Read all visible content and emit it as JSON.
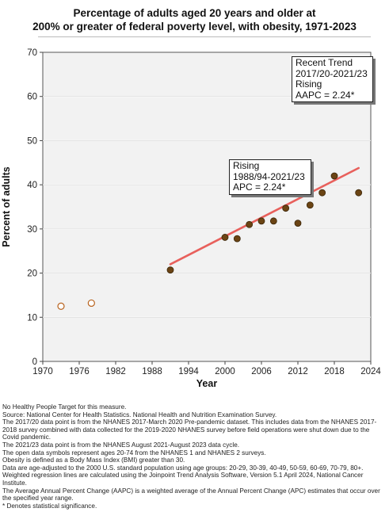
{
  "chart_data": {
    "type": "scatter",
    "title_lines": [
      "Percentage of adults aged 20 years and older at",
      "200% or greater of federal poverty level, with obesity, 1971-2023"
    ],
    "xlabel": "Year",
    "ylabel": "Percent of adults",
    "xlim": [
      1970,
      2024
    ],
    "ylim": [
      0,
      70
    ],
    "x_ticks": [
      "1970",
      "1976",
      "1982",
      "1988",
      "1994",
      "2000",
      "2006",
      "2012",
      "2018",
      "2024"
    ],
    "y_ticks": [
      "0",
      "10",
      "20",
      "30",
      "40",
      "50",
      "60",
      "70"
    ],
    "grid": true,
    "open_points": {
      "color": "#b8631e",
      "points": [
        {
          "x": 1973,
          "y": 12.5
        },
        {
          "x": 1978,
          "y": 13.2
        }
      ]
    },
    "filled_points": {
      "color": "#6b4414",
      "points": [
        {
          "x": 1991,
          "y": 20.7
        },
        {
          "x": 2000,
          "y": 28.1
        },
        {
          "x": 2002,
          "y": 27.8
        },
        {
          "x": 2004,
          "y": 31.0
        },
        {
          "x": 2006,
          "y": 31.8
        },
        {
          "x": 2008,
          "y": 31.8
        },
        {
          "x": 2010,
          "y": 34.7
        },
        {
          "x": 2012,
          "y": 31.3
        },
        {
          "x": 2014,
          "y": 35.4
        },
        {
          "x": 2016,
          "y": 38.2
        },
        {
          "x": 2018,
          "y": 42.0
        },
        {
          "x": 2022,
          "y": 38.2
        }
      ]
    },
    "trend_line": {
      "color": "#e8605c",
      "points": [
        {
          "x": 1991,
          "y": 22.0
        },
        {
          "x": 2022,
          "y": 43.8
        }
      ]
    },
    "annotations": {
      "recent": [
        "Recent Trend",
        "2017/20-2021/23",
        "Rising",
        "AAPC =  2.24*"
      ],
      "rising": [
        "Rising",
        "1988/94-2021/23",
        "APC =  2.24*"
      ]
    }
  },
  "notes": [
    "No Healthy People Target for this measure.",
    "Source: National Center for Health Statistics. National Health and Nutrition Examination Survey.",
    "The 2017/20 data point is from the NHANES 2017-March 2020 Pre-pandemic dataset. This includes data from the NHANES 2017-2018 survey combined with data collected for the 2019-2020 NHANES survey before field operations were shut down due to the Covid pandemic.",
    "The 2021/23 data point is from the NHANES August 2021-August 2023 data cycle.",
    "The open data symbols represent ages 20-74 from the NHANES 1 and NHANES 2 surveys.",
    "Obesity is defined as a Body Mass Index (BMI) greater than 30.",
    "Data are age-adjusted to the 2000 U.S. standard population using age groups: 20-29, 30-39, 40-49, 50-59, 60-69, 70-79, 80+.",
    "Weighted regression lines are calculated using the Joinpoint Trend Analysis Software, Version 5.1 April 2024, National Cancer Institute.",
    "The Average Annual Percent Change (AAPC) is a weighted average of the Annual Percent Change (APC) estimates that occur over the specified year range.",
    "* Denotes statistical significance."
  ]
}
